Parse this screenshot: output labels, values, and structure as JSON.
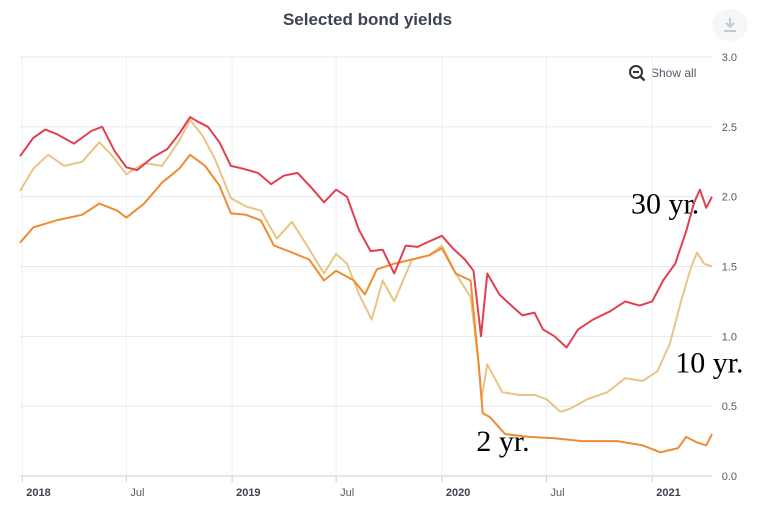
{
  "header": {
    "title": "Selected bond yields",
    "download_icon": "download-icon"
  },
  "controls": {
    "show_all_label": "Show all",
    "show_all_icon": "zoom-out-icon"
  },
  "chart_data": {
    "type": "line",
    "title": "Selected bond yields",
    "xlabel": "",
    "ylabel": "",
    "xlim": [
      "2017-12-28",
      "2021-04-15"
    ],
    "ylim": [
      0,
      3.0
    ],
    "y_ticks": [
      "0.0",
      "0.5",
      "1.0",
      "1.5",
      "2.0",
      "2.5",
      "3.0"
    ],
    "x_ticks": [
      {
        "label": "2018",
        "date": "2018-01-01",
        "bold": true
      },
      {
        "label": "Jul",
        "date": "2018-07-01",
        "bold": false
      },
      {
        "label": "2019",
        "date": "2019-01-01",
        "bold": true
      },
      {
        "label": "Jul",
        "date": "2019-07-01",
        "bold": false
      },
      {
        "label": "2020",
        "date": "2020-01-01",
        "bold": true
      },
      {
        "label": "Jul",
        "date": "2020-07-01",
        "bold": false
      },
      {
        "label": "2021",
        "date": "2021-01-01",
        "bold": true
      }
    ],
    "grid": true,
    "series": [
      {
        "name": "30 yr.",
        "color": "#e0404f",
        "points": [
          [
            "2017-12-28",
            2.29
          ],
          [
            "2018-01-20",
            2.42
          ],
          [
            "2018-02-10",
            2.48
          ],
          [
            "2018-03-01",
            2.45
          ],
          [
            "2018-04-01",
            2.38
          ],
          [
            "2018-05-01",
            2.47
          ],
          [
            "2018-05-20",
            2.5
          ],
          [
            "2018-06-10",
            2.33
          ],
          [
            "2018-07-01",
            2.21
          ],
          [
            "2018-07-20",
            2.19
          ],
          [
            "2018-08-15",
            2.28
          ],
          [
            "2018-09-10",
            2.34
          ],
          [
            "2018-10-01",
            2.45
          ],
          [
            "2018-10-20",
            2.57
          ],
          [
            "2018-11-01",
            2.54
          ],
          [
            "2018-11-20",
            2.5
          ],
          [
            "2018-12-10",
            2.39
          ],
          [
            "2018-12-30",
            2.22
          ],
          [
            "2019-01-20",
            2.2
          ],
          [
            "2019-02-15",
            2.17
          ],
          [
            "2019-03-10",
            2.09
          ],
          [
            "2019-04-01",
            2.15
          ],
          [
            "2019-04-25",
            2.17
          ],
          [
            "2019-05-20",
            2.06
          ],
          [
            "2019-06-10",
            1.96
          ],
          [
            "2019-07-01",
            2.05
          ],
          [
            "2019-07-20",
            2.0
          ],
          [
            "2019-08-10",
            1.76
          ],
          [
            "2019-08-30",
            1.61
          ],
          [
            "2019-09-20",
            1.62
          ],
          [
            "2019-10-10",
            1.45
          ],
          [
            "2019-10-30",
            1.65
          ],
          [
            "2019-11-20",
            1.64
          ],
          [
            "2019-12-10",
            1.68
          ],
          [
            "2020-01-01",
            1.72
          ],
          [
            "2020-01-20",
            1.63
          ],
          [
            "2020-02-10",
            1.55
          ],
          [
            "2020-02-25",
            1.47
          ],
          [
            "2020-03-09",
            1.0
          ],
          [
            "2020-03-20",
            1.45
          ],
          [
            "2020-04-10",
            1.3
          ],
          [
            "2020-05-01",
            1.22
          ],
          [
            "2020-05-20",
            1.15
          ],
          [
            "2020-06-10",
            1.17
          ],
          [
            "2020-06-25",
            1.05
          ],
          [
            "2020-07-15",
            1.0
          ],
          [
            "2020-08-05",
            0.92
          ],
          [
            "2020-08-25",
            1.05
          ],
          [
            "2020-09-20",
            1.12
          ],
          [
            "2020-10-20",
            1.18
          ],
          [
            "2020-11-15",
            1.25
          ],
          [
            "2020-12-10",
            1.22
          ],
          [
            "2021-01-01",
            1.25
          ],
          [
            "2021-01-20",
            1.4
          ],
          [
            "2021-02-10",
            1.52
          ],
          [
            "2021-03-01",
            1.75
          ],
          [
            "2021-03-15",
            1.96
          ],
          [
            "2021-03-25",
            2.05
          ],
          [
            "2021-04-05",
            1.92
          ],
          [
            "2021-04-15",
            2.0
          ]
        ]
      },
      {
        "name": "10 yr.",
        "color": "#e8c585",
        "points": [
          [
            "2017-12-28",
            2.04
          ],
          [
            "2018-01-20",
            2.2
          ],
          [
            "2018-02-15",
            2.3
          ],
          [
            "2018-03-15",
            2.22
          ],
          [
            "2018-04-15",
            2.25
          ],
          [
            "2018-05-15",
            2.39
          ],
          [
            "2018-06-05",
            2.3
          ],
          [
            "2018-07-01",
            2.16
          ],
          [
            "2018-08-01",
            2.24
          ],
          [
            "2018-09-01",
            2.22
          ],
          [
            "2018-10-01",
            2.4
          ],
          [
            "2018-10-20",
            2.55
          ],
          [
            "2018-11-10",
            2.44
          ],
          [
            "2018-12-01",
            2.28
          ],
          [
            "2018-12-30",
            1.99
          ],
          [
            "2019-01-25",
            1.93
          ],
          [
            "2019-02-20",
            1.9
          ],
          [
            "2019-03-20",
            1.7
          ],
          [
            "2019-04-15",
            1.82
          ],
          [
            "2019-05-10",
            1.66
          ],
          [
            "2019-06-10",
            1.45
          ],
          [
            "2019-07-01",
            1.59
          ],
          [
            "2019-07-20",
            1.52
          ],
          [
            "2019-08-10",
            1.3
          ],
          [
            "2019-09-01",
            1.12
          ],
          [
            "2019-09-20",
            1.4
          ],
          [
            "2019-10-10",
            1.25
          ],
          [
            "2019-11-10",
            1.55
          ],
          [
            "2019-12-10",
            1.58
          ],
          [
            "2020-01-01",
            1.65
          ],
          [
            "2020-01-25",
            1.45
          ],
          [
            "2020-02-20",
            1.28
          ],
          [
            "2020-03-05",
            0.8
          ],
          [
            "2020-03-10",
            0.55
          ],
          [
            "2020-03-20",
            0.8
          ],
          [
            "2020-04-15",
            0.6
          ],
          [
            "2020-05-15",
            0.58
          ],
          [
            "2020-06-10",
            0.58
          ],
          [
            "2020-07-01",
            0.55
          ],
          [
            "2020-07-25",
            0.46
          ],
          [
            "2020-08-10",
            0.48
          ],
          [
            "2020-09-10",
            0.55
          ],
          [
            "2020-10-15",
            0.6
          ],
          [
            "2020-11-15",
            0.7
          ],
          [
            "2020-12-15",
            0.68
          ],
          [
            "2021-01-10",
            0.75
          ],
          [
            "2021-02-01",
            0.95
          ],
          [
            "2021-02-20",
            1.25
          ],
          [
            "2021-03-10",
            1.5
          ],
          [
            "2021-03-20",
            1.6
          ],
          [
            "2021-04-01",
            1.52
          ],
          [
            "2021-04-15",
            1.5
          ]
        ]
      },
      {
        "name": "2 yr.",
        "color": "#ef8c33",
        "points": [
          [
            "2017-12-28",
            1.67
          ],
          [
            "2018-01-20",
            1.78
          ],
          [
            "2018-03-01",
            1.83
          ],
          [
            "2018-04-15",
            1.87
          ],
          [
            "2018-05-15",
            1.95
          ],
          [
            "2018-06-15",
            1.9
          ],
          [
            "2018-07-01",
            1.85
          ],
          [
            "2018-08-01",
            1.95
          ],
          [
            "2018-09-01",
            2.1
          ],
          [
            "2018-10-01",
            2.2
          ],
          [
            "2018-10-20",
            2.3
          ],
          [
            "2018-11-15",
            2.22
          ],
          [
            "2018-12-10",
            2.08
          ],
          [
            "2018-12-30",
            1.88
          ],
          [
            "2019-01-25",
            1.87
          ],
          [
            "2019-02-20",
            1.83
          ],
          [
            "2019-03-15",
            1.65
          ],
          [
            "2019-04-15",
            1.6
          ],
          [
            "2019-05-15",
            1.55
          ],
          [
            "2019-06-10",
            1.4
          ],
          [
            "2019-07-01",
            1.47
          ],
          [
            "2019-08-01",
            1.4
          ],
          [
            "2019-08-20",
            1.3
          ],
          [
            "2019-09-10",
            1.48
          ],
          [
            "2019-10-10",
            1.52
          ],
          [
            "2019-11-10",
            1.55
          ],
          [
            "2019-12-10",
            1.58
          ],
          [
            "2020-01-01",
            1.63
          ],
          [
            "2020-01-25",
            1.45
          ],
          [
            "2020-02-20",
            1.4
          ],
          [
            "2020-03-05",
            0.8
          ],
          [
            "2020-03-12",
            0.45
          ],
          [
            "2020-03-25",
            0.42
          ],
          [
            "2020-04-20",
            0.3
          ],
          [
            "2020-06-01",
            0.28
          ],
          [
            "2020-07-15",
            0.27
          ],
          [
            "2020-09-01",
            0.25
          ],
          [
            "2020-11-01",
            0.25
          ],
          [
            "2020-12-15",
            0.22
          ],
          [
            "2021-01-15",
            0.17
          ],
          [
            "2021-02-15",
            0.2
          ],
          [
            "2021-03-01",
            0.28
          ],
          [
            "2021-03-20",
            0.24
          ],
          [
            "2021-04-05",
            0.22
          ],
          [
            "2021-04-15",
            0.3
          ]
        ]
      }
    ],
    "annotations": [
      {
        "text": "30 yr.",
        "date": "2020-11-25",
        "y": 1.88
      },
      {
        "text": "10 yr.",
        "date": "2021-02-10",
        "y": 0.74
      },
      {
        "text": "2 yr.",
        "date": "2020-03-01",
        "y": 0.18
      }
    ]
  }
}
